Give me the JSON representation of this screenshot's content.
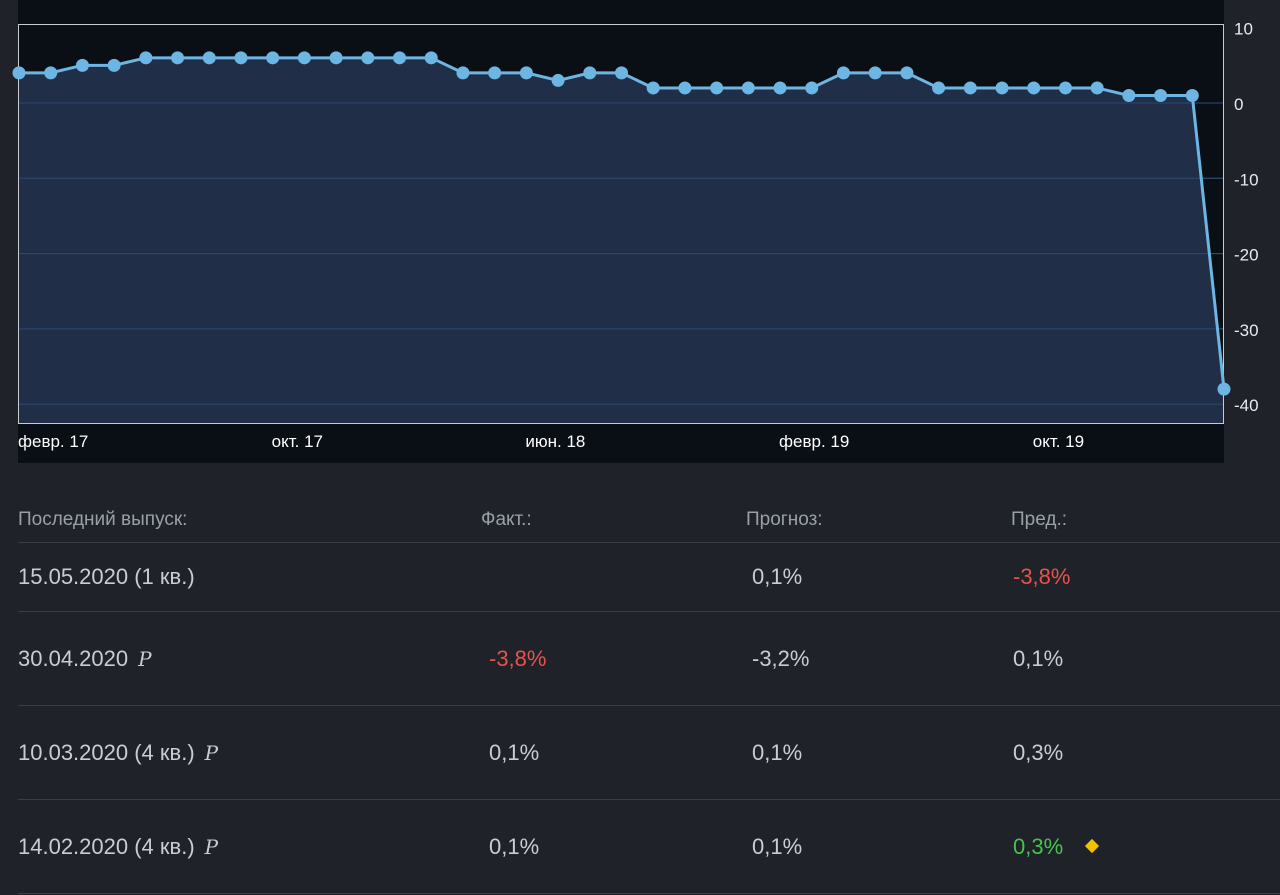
{
  "chart_data": {
    "type": "area",
    "x": [
      "февр. 17",
      "",
      "",
      "",
      "",
      "",
      "",
      "",
      "окт. 17",
      "",
      "",
      "",
      "",
      "",
      "",
      "",
      "июн. 18",
      "",
      "",
      "",
      "",
      "",
      "",
      "",
      "февр. 19",
      "",
      "",
      "",
      "",
      "",
      "",
      "",
      "окт. 19",
      "",
      "",
      "",
      "",
      "",
      ""
    ],
    "x_tick_labels": [
      "февр. 17",
      "окт. 17",
      "июн. 18",
      "февр. 19",
      "окт. 19"
    ],
    "y": [
      4,
      4,
      5,
      5,
      6,
      6,
      6,
      6,
      6,
      6,
      6,
      6,
      6,
      6,
      4,
      4,
      4,
      3,
      4,
      4,
      2,
      2,
      2,
      2,
      2,
      2,
      4,
      4,
      4,
      2,
      2,
      2,
      2,
      2,
      2,
      1,
      1,
      1,
      -38
    ],
    "y_ticks": [
      "10",
      "0",
      "-10",
      "-20",
      "-30",
      "-40"
    ],
    "ylim": [
      -42,
      10
    ],
    "grid": true,
    "colors": {
      "line": "#6db5e3",
      "fill": "#22324e",
      "background": "#0a0f16",
      "grid": "#2f4e78"
    }
  },
  "table": {
    "headers": {
      "release": "Последний выпуск:",
      "actual": "Факт.:",
      "forecast": "Прогноз:",
      "previous": "Пред.:"
    },
    "rows": [
      {
        "date": "15.05.2020 (1 кв.)",
        "preliminary": "",
        "actual": "",
        "forecast": "0,1%",
        "previous": "-3,8%"
      },
      {
        "date": "30.04.2020",
        "preliminary": "P",
        "actual": "-3,8%",
        "forecast": "-3,2%",
        "previous": "0,1%"
      },
      {
        "date": "10.03.2020 (4 кв.)",
        "preliminary": "P",
        "actual": "0,1%",
        "forecast": "0,1%",
        "previous": "0,3%"
      },
      {
        "date": "14.02.2020 (4 кв.)",
        "preliminary": "P",
        "actual": "0,1%",
        "forecast": "0,1%",
        "previous": "0,3%"
      }
    ],
    "colors": {
      "negative": "#e5534b",
      "positive": "#45c44b",
      "diamond": "#f2c200"
    }
  }
}
